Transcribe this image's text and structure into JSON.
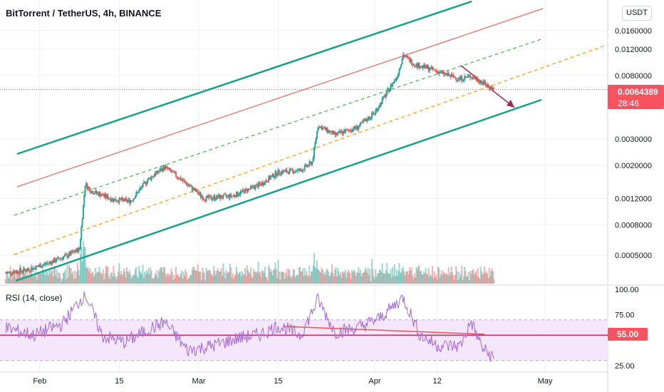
{
  "header": {
    "title": "BitTorrent / TetherUS, 4h, BINANCE",
    "currency": "USDT"
  },
  "price_tag": {
    "price": "0.0064389",
    "countdown": "28:46"
  },
  "rsi": {
    "title": "RSI (14, close)",
    "tag": "55.00"
  },
  "colors": {
    "channel": "#14a28a",
    "upper_line": "#f0675e",
    "mid_dashed": "#4caf50",
    "lower_dashed": "#ff9800",
    "arrow": "#9c2a4f",
    "up_candle": "#26a69a",
    "down_candle": "#ef5350",
    "rsi_line": "#a368d6",
    "rsi_band": "#f4e6fb",
    "rsi_level": "#e91e63"
  },
  "chart_data": [
    {
      "type": "candlestick",
      "title": "BitTorrent / TetherUS, 4h, BINANCE",
      "x_ticks": [
        "Feb",
        "15",
        "Mar",
        "15",
        "Apr",
        "12",
        "May"
      ],
      "y_ticks": [
        "0.0160000",
        "0.0120000",
        "0.0080000",
        "0.0030000",
        "0.0020000",
        "0.0012000",
        "0.0008000",
        "0.0005000"
      ],
      "y_scale": "log",
      "ylim": [
        0.00035,
        0.0175
      ],
      "last_price": 0.0064389,
      "close_series": [
        {
          "date": "2021-01-26",
          "close": 0.00038
        },
        {
          "date": "2021-01-30",
          "close": 0.0004
        },
        {
          "date": "2021-02-03",
          "close": 0.00045
        },
        {
          "date": "2021-02-06",
          "close": 0.0005
        },
        {
          "date": "2021-02-08",
          "close": 0.00055
        },
        {
          "date": "2021-02-09",
          "close": 0.0015
        },
        {
          "date": "2021-02-10",
          "close": 0.00135
        },
        {
          "date": "2021-02-14",
          "close": 0.00118
        },
        {
          "date": "2021-02-17",
          "close": 0.00115
        },
        {
          "date": "2021-02-20",
          "close": 0.0016
        },
        {
          "date": "2021-02-23",
          "close": 0.00195
        },
        {
          "date": "2021-02-26",
          "close": 0.0016
        },
        {
          "date": "2021-03-02",
          "close": 0.0012
        },
        {
          "date": "2021-03-07",
          "close": 0.00125
        },
        {
          "date": "2021-03-12",
          "close": 0.0015
        },
        {
          "date": "2021-03-15",
          "close": 0.0018
        },
        {
          "date": "2021-03-19",
          "close": 0.00185
        },
        {
          "date": "2021-03-21",
          "close": 0.0021
        },
        {
          "date": "2021-03-22",
          "close": 0.0037
        },
        {
          "date": "2021-03-25",
          "close": 0.0032
        },
        {
          "date": "2021-03-29",
          "close": 0.0036
        },
        {
          "date": "2021-04-01",
          "close": 0.0045
        },
        {
          "date": "2021-04-03",
          "close": 0.006
        },
        {
          "date": "2021-04-05",
          "close": 0.008
        },
        {
          "date": "2021-04-06",
          "close": 0.011
        },
        {
          "date": "2021-04-08",
          "close": 0.0095
        },
        {
          "date": "2021-04-11",
          "close": 0.0088
        },
        {
          "date": "2021-04-14",
          "close": 0.008
        },
        {
          "date": "2021-04-16",
          "close": 0.0076
        },
        {
          "date": "2021-04-18",
          "close": 0.0079
        },
        {
          "date": "2021-04-20",
          "close": 0.0072
        },
        {
          "date": "2021-04-22",
          "close": 0.00644
        }
      ]
    },
    {
      "type": "line",
      "title": "RSI (14, close)",
      "y_ticks": [
        100,
        75,
        55,
        25
      ],
      "ylim": [
        20,
        105
      ],
      "band": [
        30,
        70
      ],
      "level": 55,
      "series": [
        {
          "date": "2021-01-26",
          "value": 62
        },
        {
          "date": "2021-01-31",
          "value": 55
        },
        {
          "date": "2021-02-05",
          "value": 66
        },
        {
          "date": "2021-02-09",
          "value": 96
        },
        {
          "date": "2021-02-12",
          "value": 54
        },
        {
          "date": "2021-02-16",
          "value": 48
        },
        {
          "date": "2021-02-20",
          "value": 60
        },
        {
          "date": "2021-02-23",
          "value": 68
        },
        {
          "date": "2021-02-27",
          "value": 40
        },
        {
          "date": "2021-03-03",
          "value": 44
        },
        {
          "date": "2021-03-08",
          "value": 52
        },
        {
          "date": "2021-03-12",
          "value": 56
        },
        {
          "date": "2021-03-15",
          "value": 64
        },
        {
          "date": "2021-03-19",
          "value": 55
        },
        {
          "date": "2021-03-22",
          "value": 90
        },
        {
          "date": "2021-03-25",
          "value": 58
        },
        {
          "date": "2021-03-29",
          "value": 62
        },
        {
          "date": "2021-04-02",
          "value": 72
        },
        {
          "date": "2021-04-06",
          "value": 92
        },
        {
          "date": "2021-04-09",
          "value": 55
        },
        {
          "date": "2021-04-12",
          "value": 45
        },
        {
          "date": "2021-04-16",
          "value": 44
        },
        {
          "date": "2021-04-18",
          "value": 68
        },
        {
          "date": "2021-04-20",
          "value": 42
        },
        {
          "date": "2021-04-22",
          "value": 32
        }
      ]
    }
  ]
}
